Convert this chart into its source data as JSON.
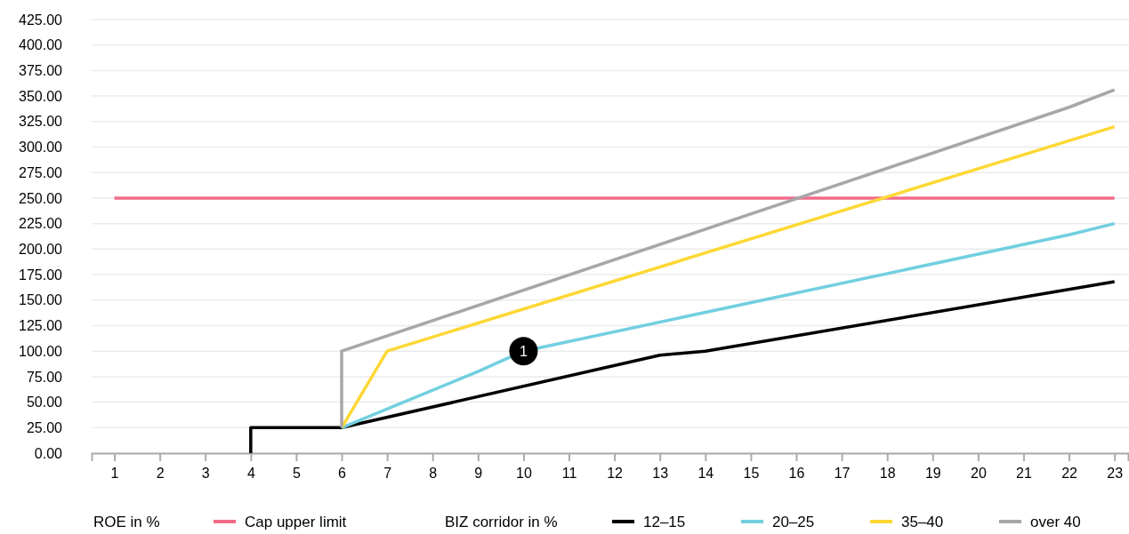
{
  "chart_data": {
    "type": "line",
    "xlabel": "ROE in %",
    "legend_title": "BIZ corridor in %",
    "xlim": [
      0.5,
      23.3
    ],
    "xticks": [
      1,
      2,
      3,
      4,
      5,
      6,
      7,
      8,
      9,
      10,
      11,
      12,
      13,
      14,
      15,
      16,
      17,
      18,
      19,
      20,
      21,
      22,
      23
    ],
    "ylim": [
      0,
      425
    ],
    "yticks": [
      {
        "value": 0,
        "label": "0.00"
      },
      {
        "value": 25,
        "label": "25.00"
      },
      {
        "value": 50,
        "label": "50.00"
      },
      {
        "value": 75,
        "label": "75.00"
      },
      {
        "value": 100,
        "label": "100.00"
      },
      {
        "value": 125,
        "label": "125.00"
      },
      {
        "value": 150,
        "label": "150.00"
      },
      {
        "value": 175,
        "label": "175.00"
      },
      {
        "value": 200,
        "label": "200.00"
      },
      {
        "value": 225,
        "label": "225.00"
      },
      {
        "value": 250,
        "label": "250.00"
      },
      {
        "value": 275,
        "label": "275.00"
      },
      {
        "value": 300,
        "label": "300.00"
      },
      {
        "value": 325,
        "label": "325.00"
      },
      {
        "value": 350,
        "label": "350.00"
      },
      {
        "value": 375,
        "label": "375.00"
      },
      {
        "value": 400,
        "label": "400.00"
      },
      {
        "value": 425,
        "label": "425.00"
      }
    ],
    "grid": "y",
    "legend": "bottom",
    "marker": "none",
    "line_style": "solid",
    "series": [
      {
        "name": "Cap upper limit",
        "color": "#f26b8a",
        "x": [
          1,
          23
        ],
        "values": [
          250,
          250
        ]
      },
      {
        "name": "12–15",
        "color": "#000000",
        "x": [
          4,
          4,
          6,
          13,
          14,
          23
        ],
        "values": [
          0,
          25,
          25,
          96,
          100,
          168
        ]
      },
      {
        "name": "20–25",
        "color": "#72cfe0",
        "x": [
          6,
          9,
          10,
          22,
          23
        ],
        "values": [
          25,
          80,
          100,
          214,
          225
        ]
      },
      {
        "name": "35–40",
        "color": "#fdd835",
        "x": [
          6,
          7,
          23
        ],
        "values": [
          25,
          100,
          320
        ]
      },
      {
        "name": "over 40",
        "color": "#a7a7a9",
        "x": [
          6,
          6,
          22,
          23
        ],
        "values": [
          25,
          100,
          339,
          356
        ]
      }
    ],
    "annotations": [
      {
        "text": "1",
        "x": 10,
        "y": 100
      }
    ]
  }
}
